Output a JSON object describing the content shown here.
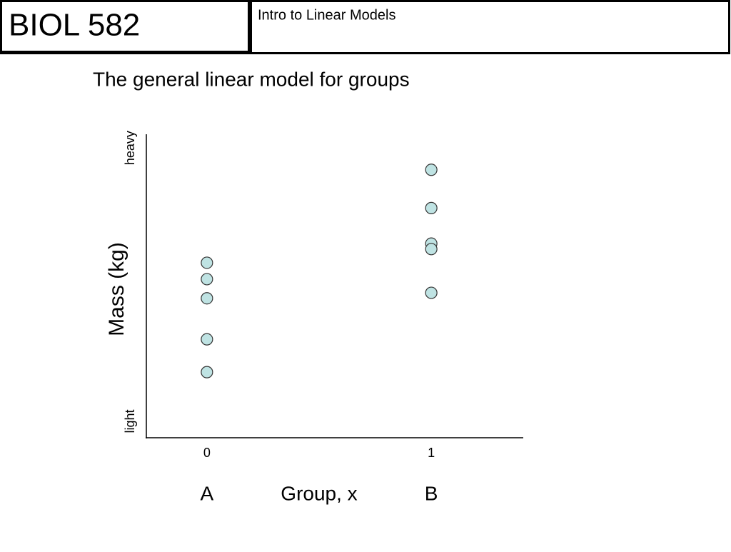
{
  "header": {
    "course": "BIOL 582",
    "topic": "Intro to Linear Models"
  },
  "chart_data": {
    "type": "scatter",
    "title": "The general linear model for groups",
    "x_label": "Group, x",
    "y_label": "Mass (kg)",
    "group_labels": [
      "A",
      "B"
    ],
    "xlim": [
      -0.27,
      1.41
    ],
    "xticks": [
      0,
      1
    ],
    "ylim": [
      -0.6,
      10.5
    ],
    "yticks": [
      {
        "value": 0,
        "label": "light"
      },
      {
        "value": 10,
        "label": "heavy"
      }
    ],
    "series": [
      {
        "name": "Mass",
        "color": "#bfe3e3",
        "x": [
          0,
          0,
          0,
          0,
          0,
          1,
          1,
          1,
          1,
          1
        ],
        "values": [
          5.8,
          5.2,
          4.5,
          3.0,
          1.8,
          9.2,
          7.8,
          6.5,
          6.3,
          4.7
        ]
      }
    ]
  }
}
